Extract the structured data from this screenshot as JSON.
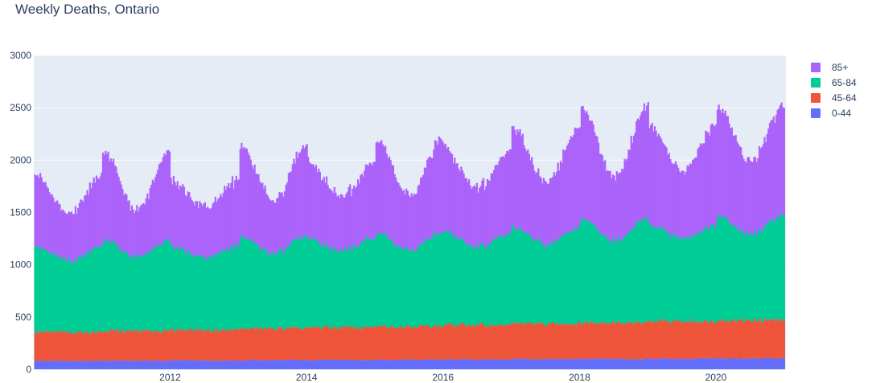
{
  "chart_data": {
    "type": "bar",
    "barmode": "stack",
    "title": "Weekly Deaths, Ontario",
    "xlabel": "",
    "ylabel": "",
    "ylim": [
      0,
      3000
    ],
    "y_ticks": [
      "0",
      "500",
      "1000",
      "1500",
      "2000",
      "2500",
      "3000"
    ],
    "x_ticks": [
      "2012",
      "2014",
      "2016",
      "2018",
      "2020"
    ],
    "x_range": [
      "2010-01-01",
      "2021-01-10"
    ],
    "grid": true,
    "legend": "right",
    "week_start": "2010-01-03",
    "series": [
      {
        "name": "0-44",
        "color": "#636efa",
        "values": [
          85,
          70,
          75,
          90,
          110,
          115
        ]
      },
      {
        "name": "45-64",
        "color": "#ef553b",
        "values": [
          280,
          300,
          330,
          370,
          380,
          390
        ]
      },
      {
        "name": "65-84",
        "color": "#00cc96",
        "values": [
          780,
          800,
          820,
          850,
          860,
          950
        ]
      },
      {
        "name": "85+",
        "color": "#ab63fa",
        "values": [
          700,
          720,
          740,
          760,
          780,
          850
        ]
      }
    ],
    "yearly_profile": {
      "85+": [
        {
          "year": 2010,
          "peak": 680,
          "trough": 440
        },
        {
          "year": 2011,
          "peak": 850,
          "trough": 450
        },
        {
          "year": 2012,
          "peak": 630,
          "trough": 480
        },
        {
          "year": 2013,
          "peak": 860,
          "trough": 510
        },
        {
          "year": 2014,
          "peak": 720,
          "trough": 520
        },
        {
          "year": 2015,
          "peak": 900,
          "trough": 520
        },
        {
          "year": 2016,
          "peak": 800,
          "trough": 560
        },
        {
          "year": 2017,
          "peak": 950,
          "trough": 600
        },
        {
          "year": 2018,
          "peak": 1080,
          "trough": 620
        },
        {
          "year": 2019,
          "peak": 950,
          "trough": 640
        },
        {
          "year": 2020,
          "peak": 1050,
          "trough": 700
        }
      ],
      "65-84": [
        {
          "year": 2010,
          "peak": 820,
          "trough": 690
        },
        {
          "year": 2011,
          "peak": 870,
          "trough": 700
        },
        {
          "year": 2012,
          "peak": 800,
          "trough": 700
        },
        {
          "year": 2013,
          "peak": 880,
          "trough": 720
        },
        {
          "year": 2014,
          "peak": 850,
          "trough": 730
        },
        {
          "year": 2015,
          "peak": 900,
          "trough": 730
        },
        {
          "year": 2016,
          "peak": 880,
          "trough": 750
        },
        {
          "year": 2017,
          "peak": 920,
          "trough": 760
        },
        {
          "year": 2018,
          "peak": 1000,
          "trough": 780
        },
        {
          "year": 2019,
          "peak": 920,
          "trough": 790
        },
        {
          "year": 2020,
          "peak": 1000,
          "trough": 820
        }
      ]
    }
  }
}
